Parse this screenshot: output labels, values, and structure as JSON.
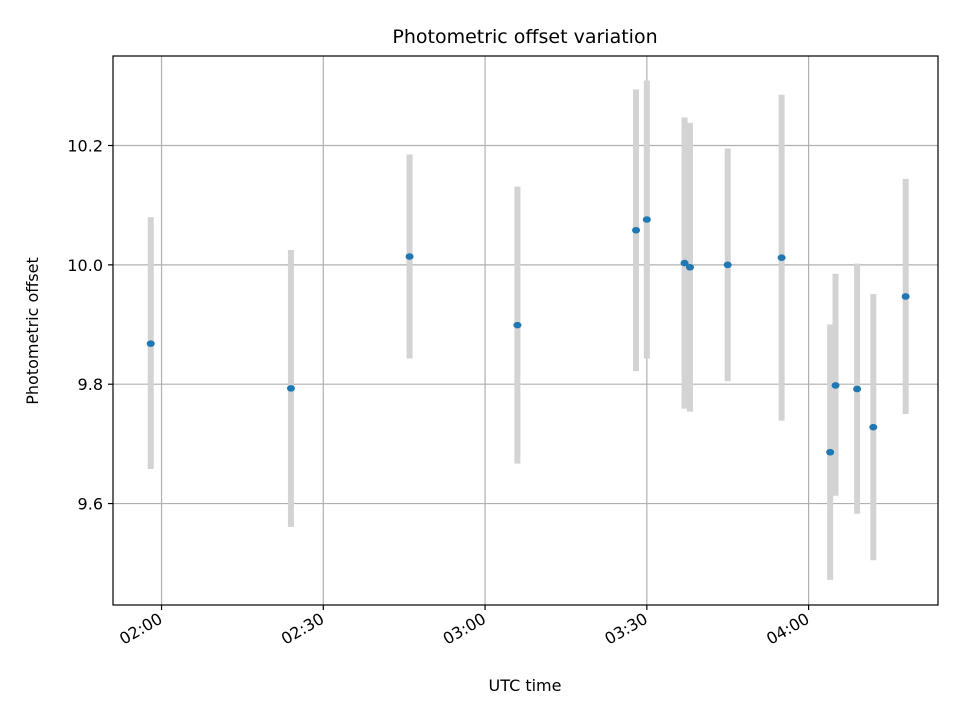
{
  "chart_data": {
    "type": "scatter",
    "title": "Photometric offset variation",
    "xlabel": "UTC time",
    "ylabel": "Photometric offset",
    "x_ticks": [
      "02:00",
      "02:30",
      "03:00",
      "03:30",
      "04:00"
    ],
    "y_ticks": [
      "9.6",
      "9.8",
      "10.0",
      "10.2"
    ],
    "xlim": [
      "01:51",
      "04:24"
    ],
    "ylim": [
      9.43,
      10.35
    ],
    "grid": true,
    "x_tick_rotation": 30,
    "colors": {
      "points": "#1f77b4",
      "error_bars": "#d3d3d3",
      "grid": "#b0b0b0",
      "axes": "#000000"
    },
    "series": [
      {
        "points": [
          {
            "x": "01:58",
            "y": 9.868,
            "low": 9.658,
            "high": 10.08
          },
          {
            "x": "02:24",
            "y": 9.793,
            "low": 9.561,
            "high": 10.025
          },
          {
            "x": "02:46",
            "y": 10.014,
            "low": 9.843,
            "high": 10.185
          },
          {
            "x": "03:06",
            "y": 9.899,
            "low": 9.667,
            "high": 10.131
          },
          {
            "x": "03:28",
            "y": 10.058,
            "low": 9.822,
            "high": 10.294
          },
          {
            "x": "03:30",
            "y": 10.076,
            "low": 9.843,
            "high": 10.309
          },
          {
            "x": "03:37",
            "y": 10.003,
            "low": 9.759,
            "high": 10.247
          },
          {
            "x": "03:38",
            "y": 9.996,
            "low": 9.754,
            "high": 10.238
          },
          {
            "x": "03:45",
            "y": 10.0,
            "low": 9.805,
            "high": 10.195
          },
          {
            "x": "03:55",
            "y": 10.012,
            "low": 9.739,
            "high": 10.285
          },
          {
            "x": "04:04",
            "y": 9.686,
            "low": 9.472,
            "high": 9.9
          },
          {
            "x": "04:05",
            "y": 9.798,
            "low": 9.613,
            "high": 9.985
          },
          {
            "x": "04:09",
            "y": 9.792,
            "low": 9.583,
            "high": 10.002
          },
          {
            "x": "04:12",
            "y": 9.728,
            "low": 9.505,
            "high": 9.951
          },
          {
            "x": "04:18",
            "y": 9.947,
            "low": 9.75,
            "high": 10.144
          }
        ]
      }
    ]
  }
}
